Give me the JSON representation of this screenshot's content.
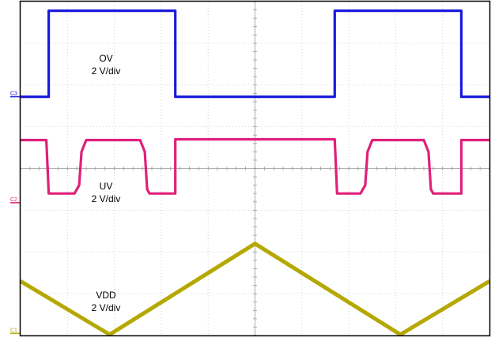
{
  "chart_data": {
    "type": "line",
    "title": "",
    "xlabel": "",
    "ylabel": "",
    "divisions": {
      "horizontal": 10,
      "vertical": 8
    },
    "grid": true,
    "xlim": [
      0,
      10
    ],
    "ylim": [
      0,
      8
    ],
    "channels": [
      {
        "id": "C3",
        "name": "OV",
        "scale": "2 V/div",
        "color": "#1a1adc",
        "ground_div": 5.72,
        "points": [
          [
            0,
            5.72
          ],
          [
            0.6,
            5.72
          ],
          [
            0.6,
            7.78
          ],
          [
            3.3,
            7.78
          ],
          [
            3.3,
            5.72
          ],
          [
            6.7,
            5.72
          ],
          [
            6.7,
            7.78
          ],
          [
            9.4,
            7.78
          ],
          [
            9.4,
            5.72
          ],
          [
            10,
            5.72
          ]
        ]
      },
      {
        "id": "C2",
        "name": "UV",
        "scale": "2 V/div",
        "color": "#e0207a",
        "ground_div": 3.18,
        "points": [
          [
            0,
            4.68
          ],
          [
            0.55,
            4.68
          ],
          [
            0.6,
            3.4
          ],
          [
            1.15,
            3.4
          ],
          [
            1.25,
            3.6
          ],
          [
            1.3,
            4.4
          ],
          [
            1.4,
            4.68
          ],
          [
            2.55,
            4.68
          ],
          [
            2.65,
            4.4
          ],
          [
            2.7,
            3.5
          ],
          [
            2.75,
            3.4
          ],
          [
            3.3,
            3.4
          ],
          [
            3.3,
            4.7
          ],
          [
            6.7,
            4.7
          ],
          [
            6.75,
            3.4
          ],
          [
            7.25,
            3.4
          ],
          [
            7.35,
            3.6
          ],
          [
            7.4,
            4.4
          ],
          [
            7.5,
            4.68
          ],
          [
            8.6,
            4.68
          ],
          [
            8.7,
            4.4
          ],
          [
            8.75,
            3.5
          ],
          [
            8.8,
            3.4
          ],
          [
            9.4,
            3.4
          ],
          [
            9.4,
            4.68
          ],
          [
            10,
            4.68
          ]
        ]
      },
      {
        "id": "C1",
        "name": "VDD",
        "scale": "2 V/div",
        "color": "#b5a800",
        "ground_div": 0.05,
        "points": [
          [
            0,
            1.3
          ],
          [
            1.9,
            0.02
          ],
          [
            5.0,
            2.2
          ],
          [
            8.1,
            0.02
          ],
          [
            10,
            1.3
          ]
        ]
      }
    ],
    "annotations": [
      {
        "channel": "C3",
        "lines": [
          "OV",
          "2 V/div"
        ]
      },
      {
        "channel": "C2",
        "lines": [
          "UV",
          "2 V/div"
        ]
      },
      {
        "channel": "C1",
        "lines": [
          "VDD",
          "2 V/div"
        ]
      }
    ]
  }
}
